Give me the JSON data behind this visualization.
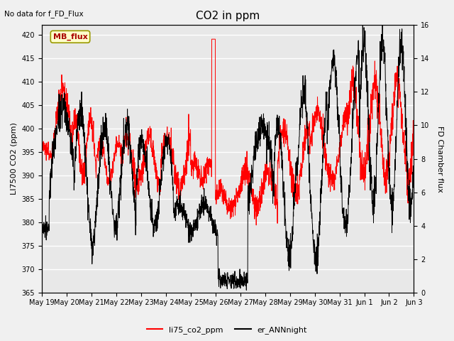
{
  "title": "CO2 in ppm",
  "top_left_text": "No data for f_FD_Flux",
  "ylabel_left": "LI7500 CO2 (ppm)",
  "ylabel_right": "FD Chamber flux",
  "ylim_left": [
    365,
    422
  ],
  "ylim_right": [
    0,
    16
  ],
  "yticks_left": [
    365,
    370,
    375,
    380,
    385,
    390,
    395,
    400,
    405,
    410,
    415,
    420
  ],
  "yticks_right": [
    0,
    2,
    4,
    6,
    8,
    10,
    12,
    14,
    16
  ],
  "legend_label_red": "li75_co2_ppm",
  "legend_label_black": "er_ANNnight",
  "mb_flux_box_text": "MB_flux",
  "fig_bg_color": "#f0f0f0",
  "plot_bg_color": "#e8e8e8",
  "grid_color": "white",
  "red_line_color": "#ff0000",
  "black_line_color": "#000000",
  "x_start": 19,
  "x_end": 34,
  "x_ticks": [
    19,
    20,
    21,
    22,
    23,
    24,
    25,
    26,
    27,
    28,
    29,
    30,
    31,
    32,
    33,
    34
  ],
  "x_tick_labels": [
    "May 19",
    "May 20",
    "May 21",
    "May 22",
    "May 23",
    "May 24",
    "May 25",
    "May 26",
    "May 27",
    "May 28",
    "May 29",
    "May 30",
    "May 31",
    "Jun 1",
    "Jun 2",
    "Jun 3"
  ],
  "figsize": [
    6.4,
    4.8
  ],
  "dpi": 100
}
